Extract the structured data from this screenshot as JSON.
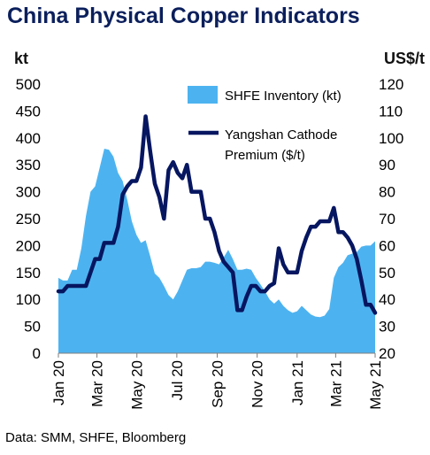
{
  "title": "China Physical Copper Indicators",
  "source": "Data: SMM, SHFE, Bloomberg",
  "chart_data": {
    "type": "area+line",
    "title": "China Physical Copper Indicators",
    "y_left": {
      "unit": "kt",
      "range": [
        0,
        500
      ],
      "ticks": [
        "0",
        "50",
        "100",
        "150",
        "200",
        "250",
        "300",
        "350",
        "400",
        "450",
        "500"
      ]
    },
    "y_right": {
      "unit": "US$/t",
      "range": [
        20,
        120
      ],
      "ticks": [
        "20",
        "30",
        "40",
        "50",
        "60",
        "70",
        "80",
        "90",
        "100",
        "110",
        "120"
      ]
    },
    "x_range": [
      0,
      69
    ],
    "x_ticks": [
      {
        "label": "Jan 20",
        "x": 0
      },
      {
        "label": "Mar 20",
        "x": 8.4
      },
      {
        "label": "May 20",
        "x": 17.1
      },
      {
        "label": "Jul 20",
        "x": 25.8
      },
      {
        "label": "Sep 20",
        "x": 34.6
      },
      {
        "label": "Nov 20",
        "x": 43.3
      },
      {
        "label": "Jan 21",
        "x": 52
      },
      {
        "label": "Mar 21",
        "x": 60.4
      },
      {
        "label": "May 21",
        "x": 69
      }
    ],
    "grid": false,
    "legend": "top-right",
    "series": [
      {
        "name": "SHFE Inventory (kt)",
        "type": "area",
        "axis": "left",
        "color": "#4db3f0",
        "points": [
          [
            0,
            140
          ],
          [
            1,
            135
          ],
          [
            2,
            135
          ],
          [
            3,
            155
          ],
          [
            4,
            155
          ],
          [
            5,
            195
          ],
          [
            6,
            255
          ],
          [
            7,
            300
          ],
          [
            8,
            310
          ],
          [
            9,
            345
          ],
          [
            10,
            380
          ],
          [
            11,
            378
          ],
          [
            12,
            365
          ],
          [
            13,
            335
          ],
          [
            14,
            320
          ],
          [
            15,
            285
          ],
          [
            16,
            245
          ],
          [
            17,
            220
          ],
          [
            18,
            205
          ],
          [
            19,
            210
          ],
          [
            20,
            180
          ],
          [
            21,
            148
          ],
          [
            22,
            140
          ],
          [
            23,
            125
          ],
          [
            24,
            108
          ],
          [
            25,
            100
          ],
          [
            26,
            115
          ],
          [
            27,
            135
          ],
          [
            28,
            155
          ],
          [
            29,
            158
          ],
          [
            30,
            158
          ],
          [
            31,
            160
          ],
          [
            32,
            170
          ],
          [
            33,
            170
          ],
          [
            34,
            168
          ],
          [
            35,
            165
          ],
          [
            36,
            178
          ],
          [
            37,
            192
          ],
          [
            38,
            175
          ],
          [
            39,
            155
          ],
          [
            40,
            155
          ],
          [
            41,
            157
          ],
          [
            42,
            155
          ],
          [
            43,
            140
          ],
          [
            44,
            128
          ],
          [
            45,
            115
          ],
          [
            46,
            100
          ],
          [
            47,
            92
          ],
          [
            48,
            100
          ],
          [
            49,
            88
          ],
          [
            50,
            80
          ],
          [
            51,
            75
          ],
          [
            52,
            78
          ],
          [
            53,
            88
          ],
          [
            54,
            80
          ],
          [
            55,
            72
          ],
          [
            56,
            68
          ],
          [
            57,
            67
          ],
          [
            58,
            70
          ],
          [
            59,
            82
          ],
          [
            60,
            140
          ],
          [
            61,
            160
          ],
          [
            62,
            168
          ],
          [
            63,
            182
          ],
          [
            64,
            185
          ],
          [
            65,
            188
          ],
          [
            66,
            198
          ],
          [
            67,
            200
          ],
          [
            68,
            200
          ],
          [
            69,
            208
          ]
        ]
      },
      {
        "name": "Yangshan Cathode Premium ($/t)",
        "type": "line",
        "axis": "right",
        "color": "#061660",
        "points": [
          [
            0,
            43
          ],
          [
            1,
            43
          ],
          [
            2,
            45
          ],
          [
            3,
            45
          ],
          [
            4,
            45
          ],
          [
            5,
            45
          ],
          [
            6,
            45
          ],
          [
            7,
            50
          ],
          [
            8,
            55
          ],
          [
            9,
            55
          ],
          [
            10,
            61
          ],
          [
            11,
            61
          ],
          [
            12,
            61
          ],
          [
            13,
            67
          ],
          [
            14,
            79
          ],
          [
            15,
            82
          ],
          [
            16,
            84
          ],
          [
            17,
            84
          ],
          [
            18,
            89
          ],
          [
            19,
            108
          ],
          [
            20,
            95
          ],
          [
            21,
            83
          ],
          [
            22,
            78
          ],
          [
            23,
            70
          ],
          [
            24,
            88
          ],
          [
            25,
            91
          ],
          [
            26,
            87
          ],
          [
            27,
            85
          ],
          [
            28,
            90
          ],
          [
            29,
            80
          ],
          [
            30,
            80
          ],
          [
            31,
            80
          ],
          [
            32,
            70
          ],
          [
            33,
            70
          ],
          [
            34,
            65
          ],
          [
            35,
            58
          ],
          [
            36,
            54
          ],
          [
            37,
            52
          ],
          [
            38,
            50
          ],
          [
            39,
            36
          ],
          [
            40,
            36
          ],
          [
            41,
            41
          ],
          [
            42,
            45
          ],
          [
            43,
            45
          ],
          [
            44,
            43
          ],
          [
            45,
            43
          ],
          [
            46,
            45
          ],
          [
            47,
            46
          ],
          [
            48,
            59
          ],
          [
            49,
            53
          ],
          [
            50,
            50
          ],
          [
            51,
            50
          ],
          [
            52,
            50
          ],
          [
            53,
            58
          ],
          [
            54,
            63
          ],
          [
            55,
            67
          ],
          [
            56,
            67
          ],
          [
            57,
            69
          ],
          [
            58,
            69
          ],
          [
            59,
            69
          ],
          [
            60,
            74
          ],
          [
            61,
            65
          ],
          [
            62,
            65
          ],
          [
            63,
            63
          ],
          [
            64,
            60
          ],
          [
            65,
            55
          ],
          [
            66,
            47
          ],
          [
            67,
            38
          ],
          [
            68,
            38
          ],
          [
            69,
            35
          ]
        ]
      }
    ]
  }
}
